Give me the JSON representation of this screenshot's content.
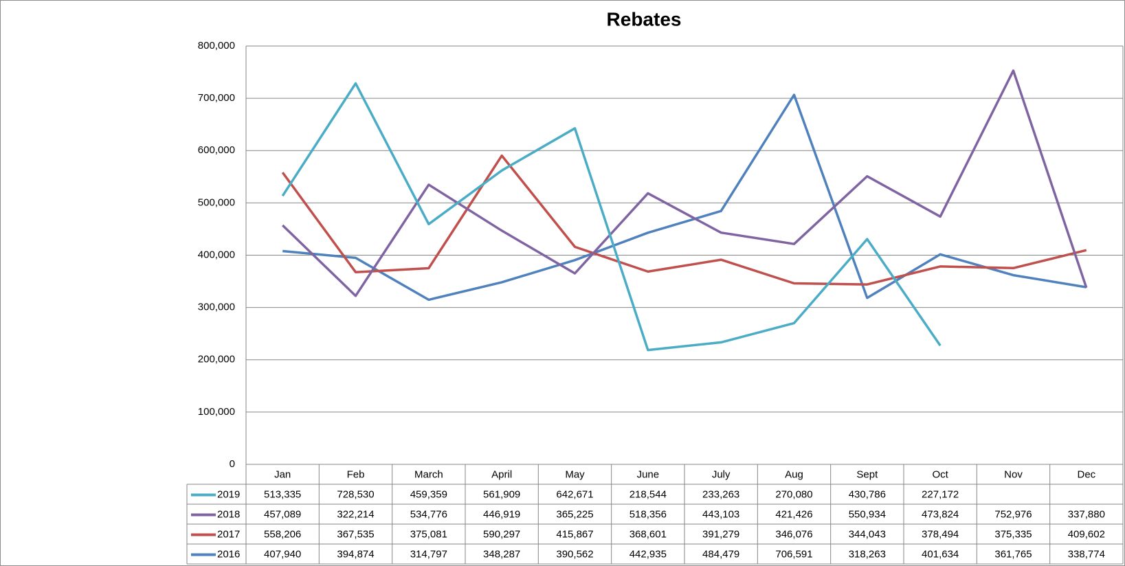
{
  "chart_data": {
    "type": "line",
    "title": "Rebates",
    "categories": [
      "Jan",
      "Feb",
      "March",
      "April",
      "May",
      "June",
      "July",
      "Aug",
      "Sept",
      "Oct",
      "Nov",
      "Dec"
    ],
    "ylim": [
      0,
      800000
    ],
    "yticks": [
      0,
      {
        "value": 100000,
        "label": "100,000"
      },
      {
        "value": 200000,
        "label": "200,000"
      },
      {
        "value": 300000,
        "label": "300,000"
      },
      {
        "value": 400000,
        "label": "400,000"
      },
      {
        "value": 500000,
        "label": "500,000"
      },
      {
        "value": 600000,
        "label": "600,000"
      },
      {
        "value": 700000,
        "label": "700,000"
      },
      {
        "value": 800000,
        "label": "800,000"
      }
    ],
    "grid": true,
    "series": [
      {
        "name": "2019",
        "color": "#4bacc6",
        "values": [
          513335,
          728530,
          459359,
          561909,
          642671,
          218544,
          233263,
          270080,
          430786,
          227172,
          null,
          null
        ],
        "value_labels": [
          "513,335",
          "728,530",
          "459,359",
          "561,909",
          "642,671",
          "218,544",
          "233,263",
          "270,080",
          "430,786",
          "227,172",
          null,
          null
        ]
      },
      {
        "name": "2018",
        "color": "#8064a2",
        "values": [
          457089,
          322214,
          534776,
          446919,
          365225,
          518356,
          443103,
          421426,
          550934,
          473824,
          752976,
          337880
        ],
        "value_labels": [
          "457,089",
          "322,214",
          "534,776",
          "446,919",
          "365,225",
          "518,356",
          "443,103",
          "421,426",
          "550,934",
          "473,824",
          "752,976",
          "337,880"
        ]
      },
      {
        "name": "2017",
        "color": "#c0504d",
        "values": [
          558206,
          367535,
          375081,
          590297,
          415867,
          368601,
          391279,
          346076,
          344043,
          378494,
          375335,
          409602
        ],
        "value_labels": [
          "558,206",
          "367,535",
          "375,081",
          "590,297",
          "415,867",
          "368,601",
          "391,279",
          "346,076",
          "344,043",
          "378,494",
          "375,335",
          "409,602"
        ]
      },
      {
        "name": "2016",
        "color": "#4f81bd",
        "values": [
          407940,
          394874,
          314797,
          348287,
          390562,
          442935,
          484479,
          706591,
          318263,
          401634,
          361765,
          338774
        ],
        "value_labels": [
          "407,940",
          "394,874",
          "314,797",
          "348,287",
          "390,562",
          "442,935",
          "484,479",
          "706,591",
          "318,263",
          "401,634",
          "361,765",
          "338,774"
        ]
      }
    ]
  }
}
